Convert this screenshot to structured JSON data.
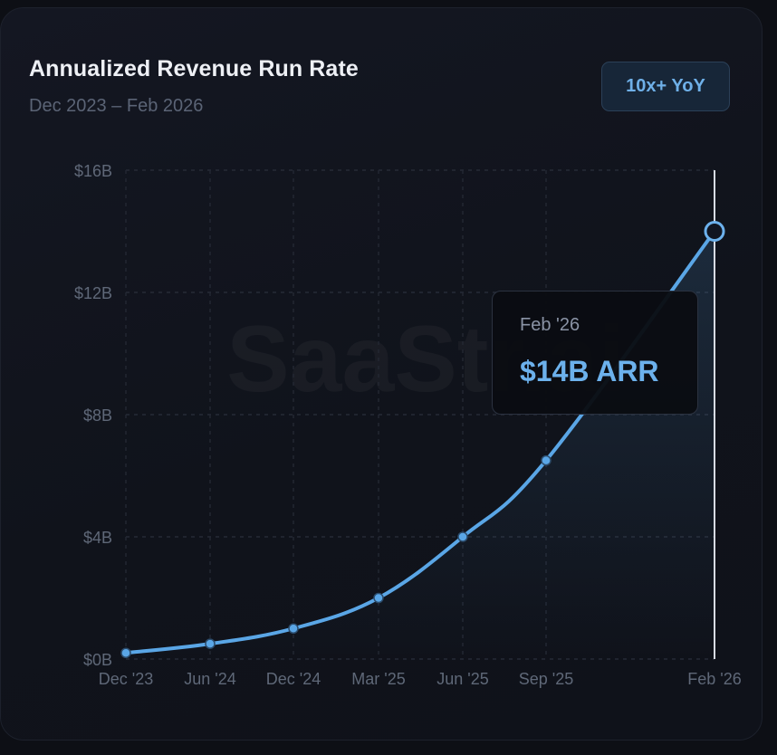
{
  "header": {
    "title": "Annualized Revenue Run Rate",
    "subtitle": "Dec 2023 – Feb 2026",
    "badge": "10x+ YoY"
  },
  "watermark": "SaaStr.ai",
  "tooltip": {
    "date": "Feb '26",
    "value": "$14B ARR"
  },
  "colors": {
    "line": "#5aa6e6",
    "accent": "#6cb1ec",
    "background": "#10131b"
  },
  "chart_data": {
    "type": "line",
    "title": "Annualized Revenue Run Rate",
    "subtitle": "Dec 2023 – Feb 2026",
    "xlabel": "",
    "ylabel": "",
    "ylim": [
      0,
      16
    ],
    "yticks": [
      "$0B",
      "$4B",
      "$8B",
      "$12B",
      "$16B"
    ],
    "ytick_values": [
      0,
      4,
      8,
      12,
      16
    ],
    "xticks": [
      "Dec '23",
      "Jun '24",
      "Dec '24",
      "Mar '25",
      "Jun '25",
      "Sep '25",
      "Feb '26"
    ],
    "grid": true,
    "series": [
      {
        "x": [
          "Dec '23",
          "Jun '24",
          "Dec '24",
          "Mar '25",
          "Jun '25",
          "Sep '25",
          "Feb '26"
        ],
        "values": [
          0.2,
          0.5,
          1.0,
          2.0,
          4.0,
          6.5,
          14.0
        ],
        "unit": "$B"
      }
    ],
    "highlight": {
      "x": "Feb '26",
      "value": 14.0,
      "label": "$14B ARR"
    }
  }
}
